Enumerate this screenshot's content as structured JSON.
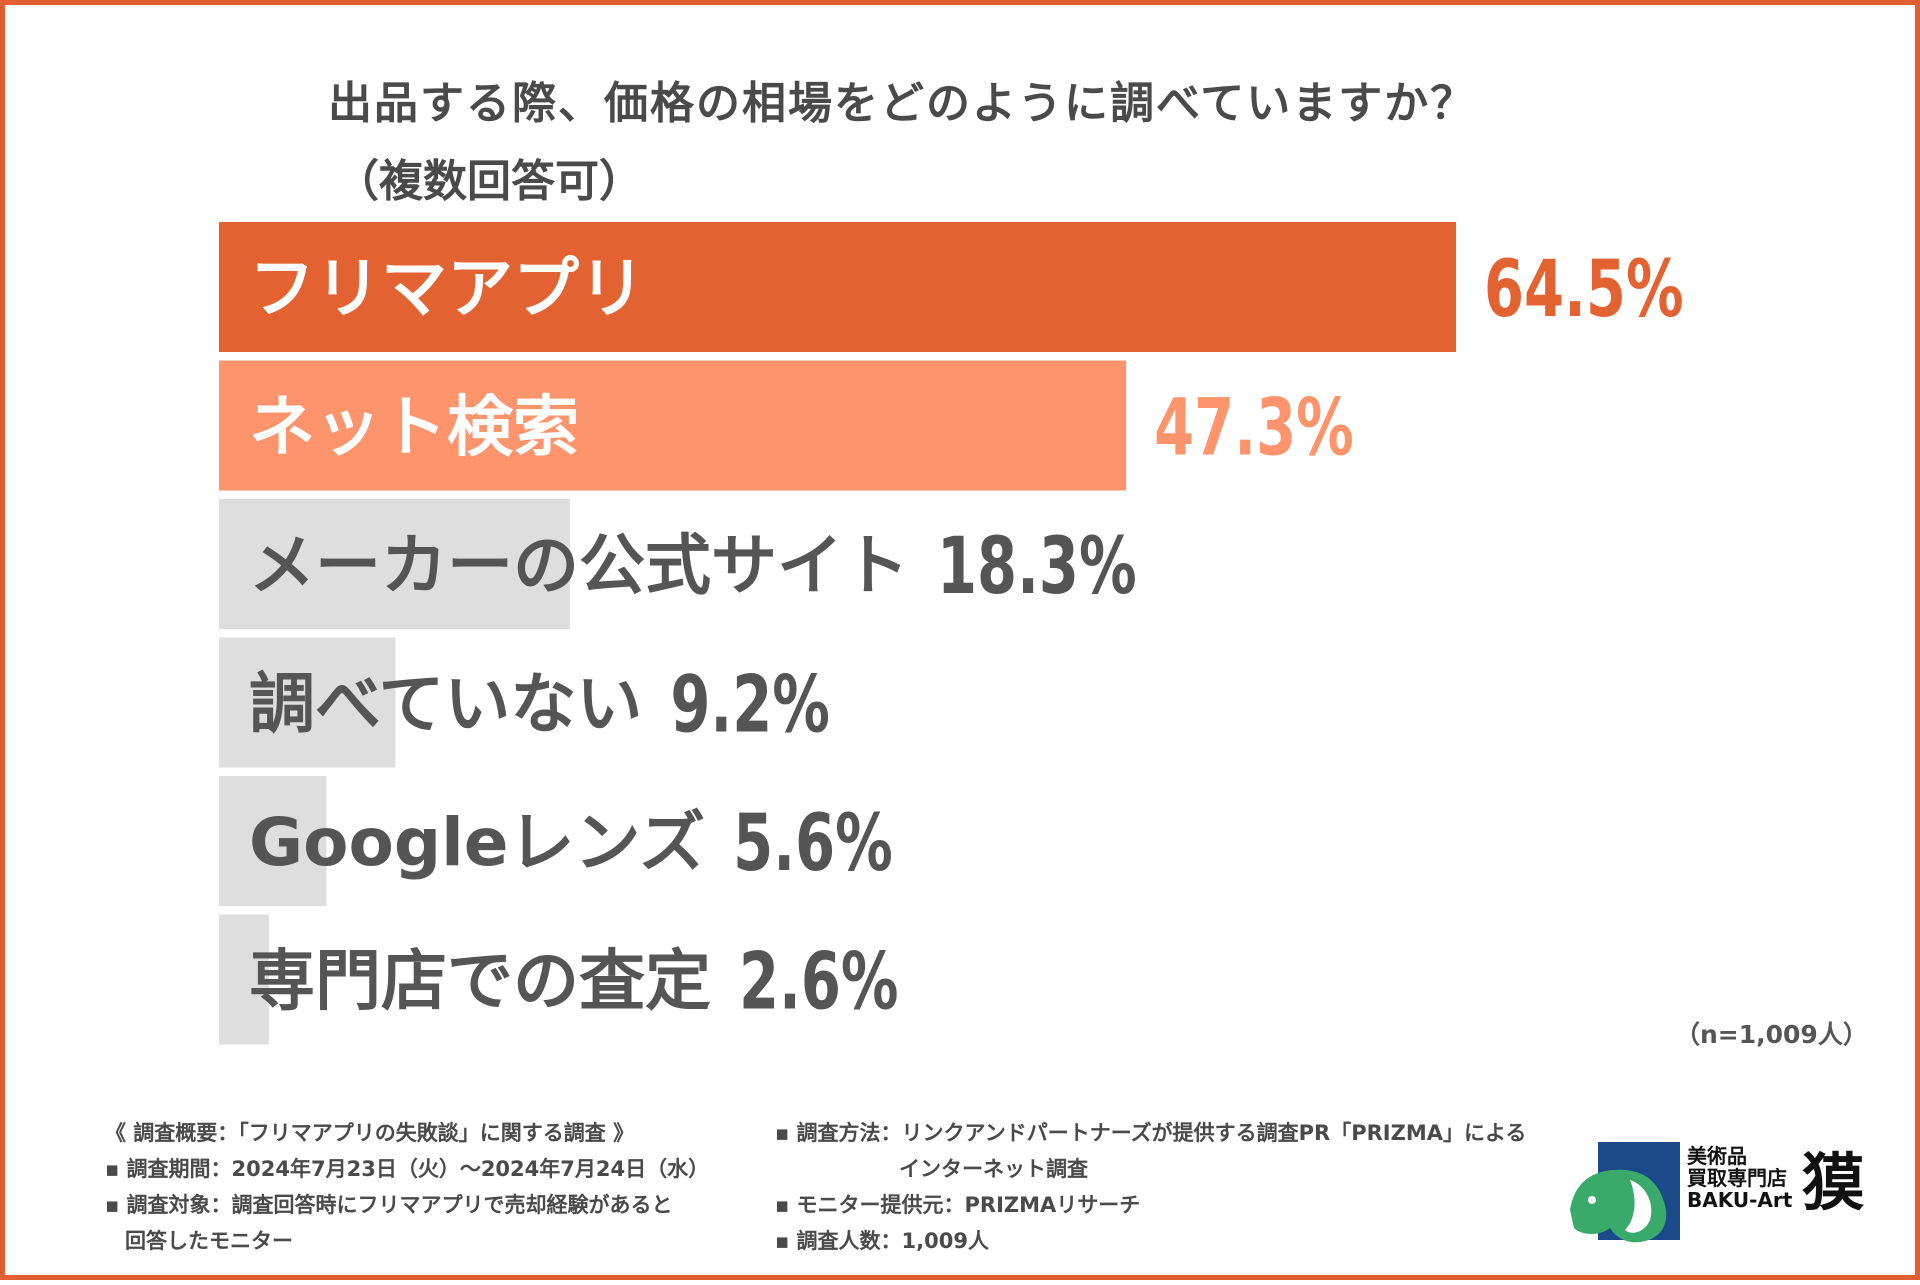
{
  "title": "出品する際、価格の相場をどのように調べていますか？",
  "subtitle": "（複数回答可）",
  "chart_data": {
    "type": "bar",
    "orientation": "horizontal",
    "title": "出品する際、価格の相場をどのように調べていますか？",
    "subtitle": "（複数回答可）",
    "categories": [
      "フリマアプリ",
      "ネット検索",
      "メーカーの公式サイト",
      "調べていない",
      "Googleレンズ",
      "専門店での査定"
    ],
    "values": [
      64.5,
      47.3,
      18.3,
      9.2,
      5.6,
      2.6
    ],
    "value_labels": [
      "64.5%",
      "47.3%",
      "18.3%",
      "9.2%",
      "5.6%",
      "2.6%"
    ],
    "unit": "%",
    "xlim": [
      0,
      100
    ],
    "colors": [
      "#e36232",
      "#fd946c",
      "#dedede",
      "#dedede",
      "#dedede",
      "#dedede"
    ],
    "label_colors": [
      "#ffffff",
      "#ffffff",
      "#555555",
      "#555555",
      "#555555",
      "#555555"
    ],
    "value_colors": [
      "#e36232",
      "#fd946c",
      "#555555",
      "#555555",
      "#555555",
      "#555555"
    ]
  },
  "sample_size": "（n=1,009人）",
  "footer": {
    "left": {
      "heading": "《 調査概要：「フリマアプリの失敗談」に関する調査 》",
      "period": "▪ 調査期間：2024年7月23日（火）～2024年7月24日（水）",
      "target_1": "▪ 調査対象：調査回答時にフリマアプリで売却経験があると",
      "target_2": "回答したモニター"
    },
    "right": {
      "method_1": "▪ 調査方法：リンクアンドパートナーズが提供する調査PR「PRIZMA」による",
      "method_2": "インターネット調査",
      "provider": "▪ モニター提供元：PRIZMAリサーチ",
      "count": "▪ 調査人数：1,009人"
    }
  },
  "logo": {
    "line1": "美術品",
    "line2": "買取専門店",
    "line3": "BAKU-Art",
    "kanji": "獏",
    "colors": {
      "green": "#3aaa6a",
      "blue": "#1a4a8a"
    }
  }
}
